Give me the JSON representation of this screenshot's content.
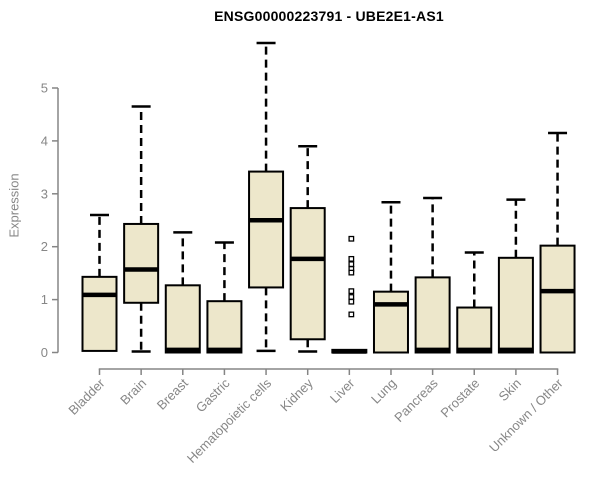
{
  "chart_data": {
    "type": "boxplot",
    "title": "ENSG00000223791 - UBE2E1-AS1",
    "ylabel": "Expression",
    "xlabel": "",
    "yticks": [
      0,
      1,
      2,
      3,
      4,
      5
    ],
    "ylim": [
      0,
      5.87
    ],
    "grid": false,
    "legend": "none",
    "categories": [
      "Bladder",
      "Brain",
      "Breast",
      "Gastric",
      "Hematopoietic cells",
      "Kidney",
      "Liver",
      "Lung",
      "Pancreas",
      "Prostate",
      "Skin",
      "Unknown / Other"
    ],
    "boxes": [
      {
        "category": "Bladder",
        "whisker_low": null,
        "q1": 0.03,
        "median": 1.09,
        "q3": 1.43,
        "whisker_high": 2.6,
        "outliers": []
      },
      {
        "category": "Brain",
        "whisker_low": 0.02,
        "q1": 0.94,
        "median": 1.57,
        "q3": 2.43,
        "whisker_high": 4.65,
        "outliers": []
      },
      {
        "category": "Breast",
        "whisker_low": null,
        "q1": 0.0,
        "median": 0.05,
        "q3": 1.27,
        "whisker_high": 2.27,
        "outliers": []
      },
      {
        "category": "Gastric",
        "whisker_low": null,
        "q1": 0.0,
        "median": 0.05,
        "q3": 0.97,
        "whisker_high": 2.08,
        "outliers": []
      },
      {
        "category": "Hematopoietic cells",
        "whisker_low": 0.03,
        "q1": 1.23,
        "median": 2.5,
        "q3": 3.42,
        "whisker_high": 5.85,
        "outliers": []
      },
      {
        "category": "Kidney",
        "whisker_low": 0.02,
        "q1": 0.25,
        "median": 1.77,
        "q3": 2.73,
        "whisker_high": 3.9,
        "outliers": []
      },
      {
        "category": "Liver",
        "whisker_low": null,
        "q1": 0.0,
        "median": 0.02,
        "q3": 0.05,
        "whisker_high": null,
        "outliers": [
          2.15,
          1.77,
          1.67,
          1.58,
          1.51,
          1.16,
          1.05,
          0.96,
          0.72
        ]
      },
      {
        "category": "Lung",
        "whisker_low": null,
        "q1": 0.0,
        "median": 0.91,
        "q3": 1.15,
        "whisker_high": 2.84,
        "outliers": []
      },
      {
        "category": "Pancreas",
        "whisker_low": null,
        "q1": 0.0,
        "median": 0.05,
        "q3": 1.42,
        "whisker_high": 2.92,
        "outliers": []
      },
      {
        "category": "Prostate",
        "whisker_low": null,
        "q1": 0.0,
        "median": 0.05,
        "q3": 0.85,
        "whisker_high": 1.89,
        "outliers": []
      },
      {
        "category": "Skin",
        "whisker_low": null,
        "q1": 0.0,
        "median": 0.05,
        "q3": 1.79,
        "whisker_high": 2.89,
        "outliers": []
      },
      {
        "category": "Unknown / Other",
        "whisker_low": null,
        "q1": 0.0,
        "median": 1.16,
        "q3": 2.02,
        "whisker_high": 4.15,
        "outliers": []
      }
    ],
    "colors": {
      "box_fill": "#EDE7CB",
      "box_border": "#000000",
      "median": "#000000",
      "whisker": "#000000",
      "axis": "#858585",
      "text": "#878787",
      "title": "#000000",
      "background": "#ffffff"
    }
  }
}
